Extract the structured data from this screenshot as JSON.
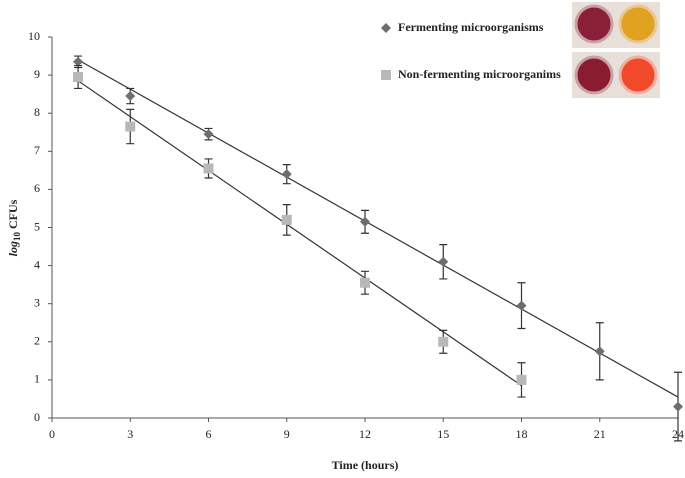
{
  "chart_data": {
    "type": "scatter",
    "x_label": "Time (hours)",
    "y_label": {
      "base": "log",
      "subscript": "10",
      "unit": "CFUs"
    },
    "xlim": [
      0,
      24
    ],
    "xticks": [
      0,
      3,
      6,
      9,
      12,
      15,
      18,
      21,
      24
    ],
    "ylim": [
      0,
      10
    ],
    "yticks": [
      0,
      1,
      2,
      3,
      4,
      5,
      6,
      7,
      8,
      9,
      10
    ],
    "series": [
      {
        "name": "Fermenting microorganisms",
        "color": "#6e6e6e",
        "marker": "diamond",
        "x": [
          1,
          3,
          6,
          9,
          12,
          15,
          18,
          21,
          24
        ],
        "values": [
          9.35,
          8.45,
          7.45,
          6.4,
          5.15,
          4.1,
          2.95,
          1.75,
          0.3
        ],
        "errors": [
          0.15,
          0.2,
          0.15,
          0.25,
          0.3,
          0.45,
          0.6,
          0.75,
          0.9
        ],
        "trendline": {
          "x": [
            1,
            24
          ],
          "values": [
            9.4,
            0.55
          ]
        }
      },
      {
        "name": "Non-fermenting microorganims",
        "color": "#b8b8b8",
        "marker": "square",
        "x": [
          1,
          3,
          6,
          9,
          12,
          15,
          18
        ],
        "values": [
          8.95,
          7.65,
          6.55,
          5.2,
          3.55,
          2.0,
          1.0
        ],
        "errors": [
          0.3,
          0.45,
          0.25,
          0.4,
          0.3,
          0.3,
          0.45
        ],
        "trendline": {
          "x": [
            1,
            18
          ],
          "values": [
            8.85,
            0.85
          ]
        }
      }
    ]
  }
}
